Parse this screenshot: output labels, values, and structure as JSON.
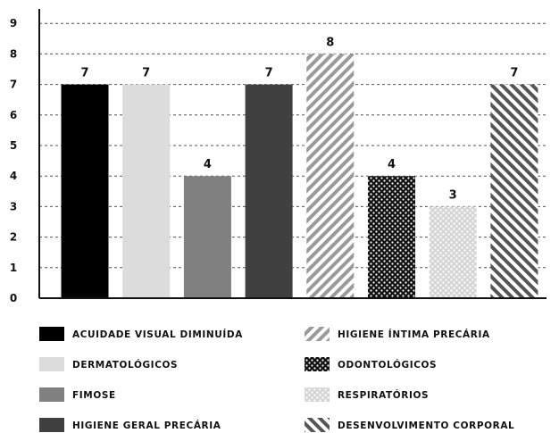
{
  "chart_data": {
    "type": "bar",
    "categories": [
      "ACUIDADE VISUAL DIMINUÍDA",
      "DERMATOLÓGICOS",
      "FIMOSE",
      "HIGIENE GERAL PRECÁRIA",
      "HIGIENE ÍNTIMA PRECÁRIA",
      "ODONTOLÓGICOS",
      "RESPIRATÓRIOS",
      "DESENVOLVIMENTO CORPORAL"
    ],
    "values": [
      7,
      7,
      4,
      7,
      8,
      4,
      3,
      7
    ],
    "data_labels": [
      "7",
      "7",
      "4",
      "7",
      "8",
      "4",
      "3",
      "7"
    ],
    "fills": [
      {
        "kind": "solid",
        "color": "#000000"
      },
      {
        "kind": "solid",
        "color": "#dcdcdc"
      },
      {
        "kind": "solid",
        "color": "#808080"
      },
      {
        "kind": "solid",
        "color": "#404040"
      },
      {
        "kind": "stripes-forward",
        "color": "#9a9a9a"
      },
      {
        "kind": "checker",
        "color": "#111111"
      },
      {
        "kind": "dots",
        "color": "#c8c8c8"
      },
      {
        "kind": "stripes-back",
        "color": "#555555"
      }
    ],
    "ylim": [
      0,
      9
    ],
    "yticks": [
      "0",
      "1",
      "2",
      "3",
      "4",
      "5",
      "6",
      "7",
      "8",
      "9"
    ],
    "grid": "horizontal-dashed",
    "legend_position": "bottom",
    "title": "",
    "xlabel": "",
    "ylabel": ""
  }
}
